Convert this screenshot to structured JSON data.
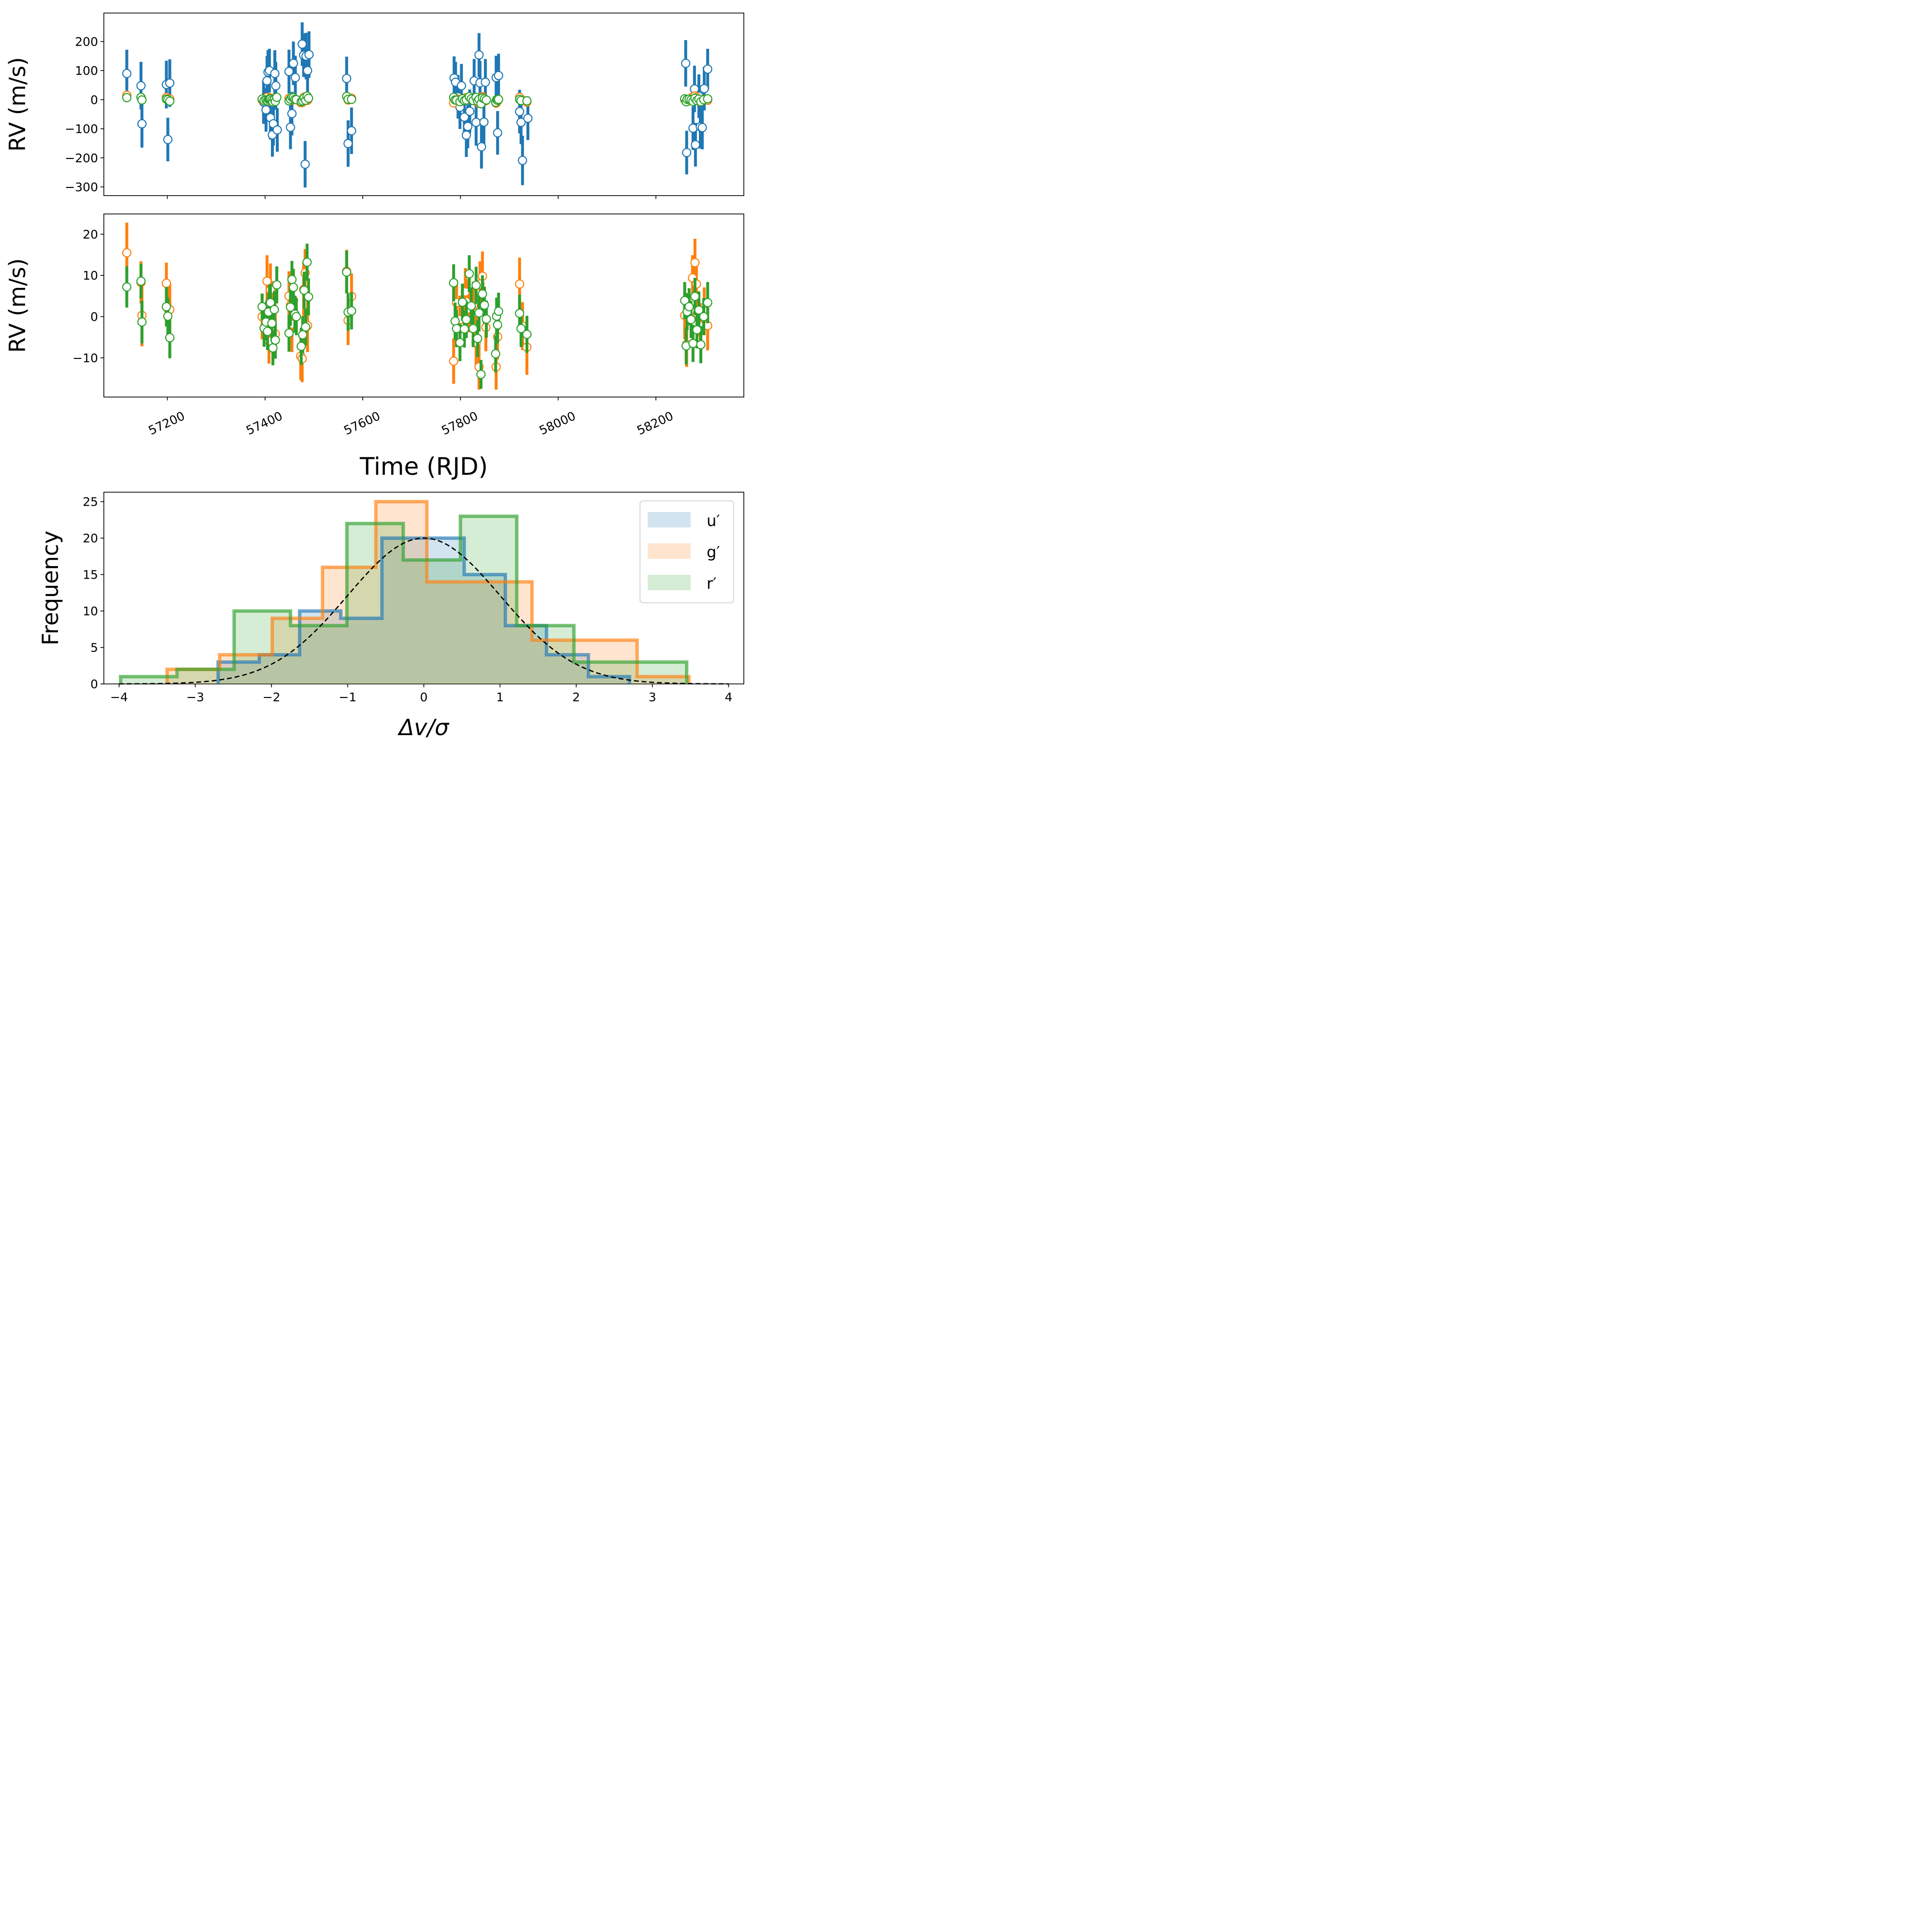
{
  "colors": {
    "u": "#1f77b4",
    "g": "#ff7f0e",
    "r": "#2ca02c",
    "model": "#000000"
  },
  "chart_data": [
    {
      "type": "scatter",
      "panel": "top",
      "ylabel": "RV (m/s)",
      "xlim": [
        57070,
        58380
      ],
      "ylim": [
        -330,
        298
      ],
      "yticks": [
        -300,
        -200,
        -100,
        0,
        100,
        200
      ],
      "ytick_labels": [
        "−300",
        "−200",
        "−100",
        "0",
        "100",
        "200"
      ],
      "xticks": [
        57200,
        57400,
        57600,
        57800,
        58000,
        58200
      ],
      "series": [
        {
          "key": "u",
          "x": [
            57117,
            57146,
            57148,
            57198,
            57201,
            57205,
            57397,
            57402,
            57404,
            57406,
            57409,
            57411,
            57415,
            57417,
            57420,
            57422,
            57425,
            57449,
            57452,
            57455,
            57458,
            57462,
            57476,
            57479,
            57482,
            57484,
            57487,
            57490,
            57567,
            57570,
            57577,
            57787,
            57790,
            57795,
            57799,
            57802,
            57808,
            57812,
            57815,
            57819,
            57828,
            57832,
            57838,
            57840,
            57843,
            57848,
            57851,
            57873,
            57876,
            57878,
            57921,
            57924,
            57927,
            57938,
            58261,
            58263,
            58276,
            58279,
            58281,
            58288,
            58291,
            58295,
            58299,
            58306
          ],
          "y": [
            90,
            48,
            -83,
            52,
            -137,
            57,
            -8,
            -35,
            65,
            95,
            100,
            -62,
            -121,
            -83,
            90,
            48,
            -104,
            97,
            -95,
            -48,
            125,
            76,
            191,
            153,
            -222,
            150,
            100,
            155,
            73,
            -151,
            -107,
            74,
            60,
            10,
            -26,
            48,
            -60,
            -122,
            -92,
            -40,
            65,
            -78,
            154,
            58,
            -162,
            -77,
            60,
            76,
            -114,
            83,
            -41,
            -78,
            -209,
            -64,
            125,
            -182,
            -98,
            37,
            -155,
            12,
            -93,
            -96,
            38,
            105
          ],
          "err": [
            82,
            82,
            82,
            82,
            75,
            82,
            75,
            75,
            85,
            75,
            75,
            75,
            75,
            75,
            80,
            82,
            75,
            75,
            75,
            75,
            75,
            75,
            75,
            75,
            80,
            80,
            75,
            80,
            75,
            80,
            80,
            75,
            70,
            75,
            75,
            75,
            75,
            75,
            75,
            75,
            75,
            80,
            75,
            75,
            75,
            75,
            80,
            75,
            75,
            75,
            75,
            75,
            85,
            75,
            80,
            75,
            75,
            80,
            75,
            75,
            75,
            75,
            75,
            70
          ]
        },
        {
          "key": "g",
          "x": [
            57117,
            57146,
            57148,
            57198,
            57201,
            57205,
            57394,
            57404,
            57408,
            57411,
            57414,
            57421,
            57449,
            57452,
            57455,
            57458,
            57473,
            57476,
            57479,
            57482,
            57487,
            57567,
            57570,
            57577,
            57786,
            57792,
            57799,
            57810,
            57812,
            57817,
            57826,
            57832,
            57838,
            57840,
            57845,
            57852,
            57873,
            57876,
            57921,
            57927,
            57936,
            58259,
            58263,
            58275,
            58280,
            58283,
            58285,
            58291,
            58299,
            58306
          ],
          "y": [
            15,
            8,
            0,
            8,
            3,
            2,
            -1,
            8,
            -5,
            6,
            3,
            -4,
            5,
            3,
            -2,
            4,
            -10,
            -10,
            7,
            10,
            -2,
            11,
            -1,
            5,
            -11,
            4,
            -1,
            6,
            4,
            2,
            3,
            -6,
            -12,
            8,
            10,
            -3,
            -12,
            -5,
            8,
            -2,
            -8,
            0,
            -7,
            9,
            13,
            8,
            1,
            -2,
            1,
            -2
          ],
          "err": [
            7,
            6,
            7,
            5,
            6,
            6,
            6,
            7,
            6,
            7,
            6,
            6,
            6,
            6,
            7,
            6,
            6,
            6,
            7,
            6,
            7,
            6,
            6,
            6,
            6,
            6,
            6,
            6,
            6,
            6,
            6,
            6,
            6,
            6,
            6,
            6,
            6,
            6,
            6,
            6,
            6,
            6,
            6,
            6,
            6,
            6,
            6,
            6,
            6,
            6
          ]
        },
        {
          "key": "r",
          "x": [
            57117,
            57146,
            57148,
            57198,
            57201,
            57205,
            57394,
            57398,
            57402,
            57405,
            57407,
            57409,
            57411,
            57414,
            57416,
            57419,
            57421,
            57424,
            57449,
            57452,
            57455,
            57458,
            57461,
            57464,
            57474,
            57477,
            57480,
            57483,
            57486,
            57489,
            57567,
            57570,
            57577,
            57786,
            57789,
            57792,
            57799,
            57804,
            57808,
            57812,
            57818,
            57822,
            57826,
            57832,
            57835,
            57838,
            57842,
            57845,
            57849,
            57853,
            57872,
            57874,
            57876,
            57878,
            57921,
            57924,
            57936,
            58259,
            58262,
            58264,
            58268,
            58272,
            58276,
            58280,
            58284,
            58288,
            58292,
            58298,
            58306
          ],
          "y": [
            7,
            8,
            -1,
            2,
            0,
            -5,
            2,
            -3,
            -1,
            -4,
            1,
            3,
            2,
            -2,
            -8,
            1,
            -6,
            8,
            -4,
            2,
            9,
            7,
            1,
            0,
            -7,
            -4,
            6,
            -2,
            12,
            5,
            11,
            1,
            1,
            8,
            -1,
            -2,
            -7,
            3,
            -3,
            -1,
            10,
            3,
            -3,
            8,
            -5,
            1,
            -14,
            6,
            3,
            -1,
            -9,
            0,
            -2,
            1,
            1,
            -3,
            -4,
            3,
            -7,
            1,
            2,
            -1,
            -6,
            5,
            -3,
            2,
            -7,
            0,
            3
          ],
          "err": [
            5,
            5,
            6,
            5,
            5,
            5,
            3,
            5,
            5,
            5,
            5,
            5,
            5,
            5,
            5,
            5,
            5,
            5,
            5,
            5,
            5,
            5,
            5,
            5,
            5,
            5,
            5,
            5,
            5,
            5,
            5,
            5,
            5,
            5,
            5,
            5,
            5,
            5,
            5,
            5,
            5,
            5,
            5,
            5,
            5,
            5,
            5,
            5,
            5,
            5,
            5,
            5,
            5,
            5,
            5,
            5,
            5,
            5,
            5,
            5,
            5,
            5,
            5,
            5,
            5,
            5,
            5,
            5,
            5
          ]
        }
      ]
    },
    {
      "type": "scatter",
      "panel": "middle",
      "ylabel": "RV (m/s)",
      "xlabel": "Time (RJD)",
      "xlim": [
        57070,
        58380
      ],
      "ylim": [
        -19.5,
        24.9
      ],
      "yticks": [
        -10,
        0,
        10,
        20
      ],
      "ytick_labels": [
        "−10",
        "0",
        "10",
        "20"
      ],
      "xticks": [
        57200,
        57400,
        57600,
        57800,
        58000,
        58200
      ],
      "xtick_labels": [
        "57200",
        "57400",
        "57600",
        "57800",
        "58000",
        "58200"
      ],
      "series": [
        {
          "key": "g",
          "x": [
            57117,
            57146,
            57148,
            57198,
            57201,
            57205,
            57394,
            57404,
            57408,
            57411,
            57414,
            57421,
            57449,
            57452,
            57455,
            57458,
            57473,
            57476,
            57479,
            57482,
            57487,
            57567,
            57570,
            57577,
            57786,
            57792,
            57799,
            57810,
            57812,
            57817,
            57826,
            57832,
            57838,
            57840,
            57845,
            57852,
            57873,
            57876,
            57921,
            57927,
            57936,
            58259,
            58263,
            58275,
            58280,
            58283,
            58285,
            58291,
            58299,
            58306
          ],
          "y": [
            15.5,
            8.3,
            0.3,
            8.1,
            2.0,
            1.7,
            0.0,
            8.6,
            -5.9,
            6.5,
            2.8,
            -4.2,
            5.0,
            2.7,
            -1.8,
            4.0,
            -9.6,
            -10.2,
            6.6,
            10.6,
            -2.2,
            11.0,
            -0.9,
            4.9,
            -10.8,
            3.4,
            -0.7,
            6.0,
            3.6,
            1.9,
            2.7,
            -6.2,
            -12.2,
            7.9,
            9.8,
            -2.6,
            -12.2,
            -4.9,
            7.9,
            -2.3,
            -7.4,
            0.3,
            -6.7,
            9.4,
            13.1,
            7.9,
            0.7,
            -2.3,
            1.3,
            -2.2
          ],
          "err": [
            7.3,
            5.1,
            7.5,
            5.0,
            5.5,
            6.2,
            5.5,
            6.3,
            5.5,
            6.4,
            5.8,
            5.7,
            6.0,
            5.9,
            6.8,
            5.6,
            5.8,
            5.7,
            6.7,
            5.8,
            6.4,
            5.2,
            6.0,
            5.6,
            5.5,
            5.4,
            5.8,
            5.8,
            5.5,
            5.7,
            5.8,
            6.4,
            5.5,
            5.5,
            6.0,
            5.8,
            5.5,
            5.5,
            6.4,
            5.8,
            6.7,
            5.8,
            5.5,
            5.5,
            5.8,
            6.0,
            5.5,
            5.6,
            5.8,
            6.0
          ]
        },
        {
          "key": "r",
          "x": [
            57117,
            57146,
            57148,
            57198,
            57201,
            57205,
            57394,
            57398,
            57402,
            57405,
            57407,
            57409,
            57411,
            57414,
            57416,
            57419,
            57421,
            57424,
            57449,
            57452,
            57455,
            57458,
            57461,
            57464,
            57474,
            57477,
            57480,
            57483,
            57486,
            57489,
            57567,
            57570,
            57577,
            57786,
            57789,
            57792,
            57799,
            57804,
            57808,
            57812,
            57818,
            57822,
            57826,
            57832,
            57835,
            57838,
            57842,
            57845,
            57849,
            57853,
            57872,
            57874,
            57876,
            57878,
            57921,
            57924,
            57936,
            58259,
            58262,
            58264,
            58268,
            58272,
            58276,
            58280,
            58284,
            58288,
            58292,
            58298,
            58306
          ],
          "y": [
            7.2,
            8.6,
            -1.3,
            2.4,
            0.1,
            -5.1,
            2.4,
            -2.8,
            -1.3,
            -3.6,
            1.1,
            3.2,
            3.4,
            -1.6,
            -7.6,
            1.7,
            -5.7,
            7.7,
            -4.0,
            2.3,
            9.0,
            7.1,
            0.6,
            0.0,
            -7.2,
            -4.4,
            6.4,
            -2.5,
            13.2,
            4.8,
            10.8,
            1.1,
            1.4,
            8.2,
            -1.1,
            -2.9,
            -6.3,
            3.5,
            -3.0,
            -0.7,
            10.4,
            2.6,
            -2.9,
            7.6,
            -5.3,
            0.9,
            -14.0,
            5.5,
            2.8,
            -0.6,
            -9.0,
            0.1,
            -2.0,
            1.3,
            0.8,
            -2.9,
            -4.3,
            3.9,
            -7.1,
            1.2,
            2.4,
            -0.7,
            -6.5,
            4.9,
            -3.2,
            1.6,
            -6.8,
            0.0,
            3.4
          ],
          "err": [
            5.0,
            4.2,
            5.2,
            4.8,
            4.5,
            5.0,
            3.2,
            4.5,
            4.5,
            4.5,
            4.5,
            4.5,
            4.5,
            4.5,
            4.2,
            4.5,
            4.5,
            4.5,
            4.5,
            4.5,
            4.5,
            4.5,
            4.5,
            4.5,
            4.5,
            4.5,
            4.5,
            4.5,
            4.5,
            4.5,
            5.2,
            4.5,
            4.5,
            4.5,
            4.5,
            4.5,
            4.5,
            4.5,
            4.5,
            4.5,
            4.5,
            4.5,
            4.5,
            4.5,
            4.5,
            4.5,
            3.5,
            4.5,
            4.5,
            4.5,
            4.5,
            4.5,
            4.5,
            4.5,
            4.5,
            4.5,
            4.5,
            4.5,
            4.5,
            4.5,
            4.5,
            4.5,
            4.5,
            4.5,
            4.5,
            4.5,
            4.5,
            4.5,
            5.0
          ]
        }
      ]
    },
    {
      "type": "histogram",
      "panel": "bottom",
      "xlabel": "Δv/σ",
      "ylabel": "Frequency",
      "xlim": [
        -4.2,
        4.2
      ],
      "ylim": [
        0,
        26.3
      ],
      "xticks": [
        -4,
        -3,
        -2,
        -1,
        0,
        1,
        2,
        3,
        4
      ],
      "xtick_labels": [
        "−4",
        "−3",
        "−2",
        "−1",
        "0",
        "1",
        "2",
        "3",
        "4"
      ],
      "yticks": [
        0,
        5,
        10,
        15,
        20,
        25
      ],
      "ytick_labels": [
        "0",
        "5",
        "10",
        "15",
        "20",
        "25"
      ],
      "legend_position": "top-right",
      "series": [
        {
          "key": "u",
          "name": "u′",
          "edges": [
            -2.7,
            -2.16,
            -1.63,
            -1.09,
            -0.55,
            -0.01,
            0.53,
            1.07,
            1.61,
            2.16,
            2.7
          ],
          "counts": [
            3,
            4,
            10,
            9,
            20,
            20,
            15,
            8,
            4,
            1
          ]
        },
        {
          "key": "g",
          "name": "g′",
          "edges": [
            -3.37,
            -2.68,
            -1.99,
            -1.33,
            -0.63,
            0.04,
            0.74,
            1.42,
            2.12,
            2.8,
            3.48
          ],
          "counts": [
            2,
            4,
            9,
            16,
            25,
            14,
            14,
            6,
            6,
            1
          ]
        },
        {
          "key": "r",
          "name": "r′",
          "edges": [
            -3.98,
            -3.24,
            -2.49,
            -1.75,
            -1.01,
            -0.27,
            0.48,
            1.22,
            1.97,
            2.71,
            3.45
          ],
          "counts": [
            1,
            2,
            10,
            8,
            22,
            17,
            23,
            8,
            3,
            3
          ]
        }
      ],
      "model": {
        "type": "gaussian",
        "amplitude": 20,
        "mean": 0,
        "sigma": 1,
        "style": "dashed"
      }
    }
  ]
}
